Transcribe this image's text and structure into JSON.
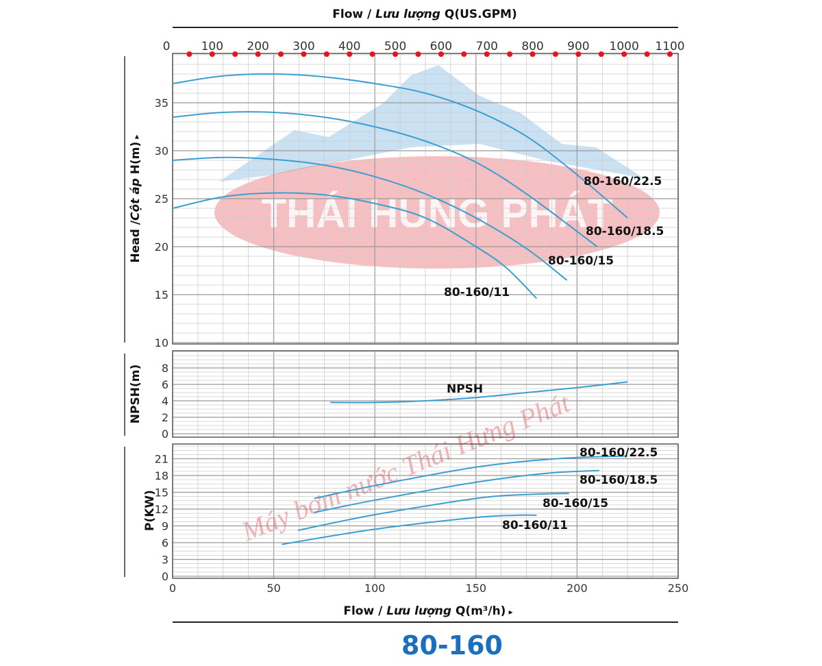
{
  "chart_data": {
    "type": "line",
    "title": "80-160",
    "top_axis": {
      "label_prefix": "Flow / ",
      "label_italic": "Lưu lượng",
      "label_suffix": " Q(US.GPM)",
      "ticks": [
        0,
        100,
        200,
        300,
        400,
        500,
        600,
        700,
        800,
        900,
        1000,
        1100
      ],
      "range": [
        0,
        1100
      ]
    },
    "xlabel": {
      "prefix": "Flow / ",
      "italic": "Lưu lượng",
      "suffix": " Q(m³/h)",
      "arrow": "▸"
    },
    "xlim": [
      0,
      250
    ],
    "xticks": [
      0,
      50,
      100,
      150,
      200,
      250
    ],
    "watermark": {
      "logo_text": "THÁI HUNG PHÁT",
      "diagonal_text": "Máy bơm nước Thái Hưng Phát"
    },
    "panels": [
      {
        "name": "head",
        "ylabel": {
          "prefix": "Head /",
          "italic": "Cột áp",
          "suffix": " H(m)",
          "arrow": "▸"
        },
        "ylim": [
          10,
          40
        ],
        "yticks": [
          10,
          15,
          20,
          25,
          30,
          35
        ],
        "series": [
          {
            "name": "80-160/22.5",
            "x": [
              0,
              25,
              50,
              75,
              100,
              125,
              150,
              175,
              200,
              225
            ],
            "y": [
              37,
              37.8,
              38,
              37.7,
              37,
              36,
              34.2,
              31.5,
              27.5,
              23
            ]
          },
          {
            "name": "80-160/18.5",
            "x": [
              0,
              25,
              50,
              75,
              100,
              125,
              150,
              175,
              210
            ],
            "y": [
              33.5,
              34,
              34,
              33.5,
              32.5,
              31,
              28.8,
              25.5,
              20
            ]
          },
          {
            "name": "80-160/15",
            "x": [
              0,
              25,
              50,
              75,
              100,
              125,
              150,
              175,
              195
            ],
            "y": [
              29,
              29.3,
              29.1,
              28.5,
              27.3,
              25.5,
              23,
              19.8,
              16.5
            ]
          },
          {
            "name": "80-160/11",
            "x": [
              0,
              25,
              50,
              75,
              100,
              125,
              150,
              165,
              180
            ],
            "y": [
              24,
              25.2,
              25.6,
              25.4,
              24.5,
              23,
              20,
              17.8,
              14.6
            ]
          }
        ]
      },
      {
        "name": "npsh",
        "ylabel": "NPSH(m)",
        "ylim": [
          0,
          10
        ],
        "yticks": [
          0,
          2,
          4,
          6,
          8
        ],
        "series": [
          {
            "name": "NPSH",
            "x": [
              78,
              100,
              125,
              150,
              175,
              200,
              225
            ],
            "y": [
              3.8,
              3.8,
              4.0,
              4.4,
              5.0,
              5.6,
              6.3
            ]
          }
        ]
      },
      {
        "name": "power",
        "ylabel": "P(KW)",
        "ylim": [
          0,
          24
        ],
        "yticks": [
          0,
          3,
          6,
          9,
          12,
          15,
          18,
          21
        ],
        "series": [
          {
            "name": "80-160/22.5",
            "x": [
              70,
              100,
              150,
              190,
              225
            ],
            "y": [
              13.9,
              16.2,
              19.5,
              21,
              21.5
            ]
          },
          {
            "name": "80-160/18.5",
            "x": [
              70,
              100,
              150,
              185,
              211
            ],
            "y": [
              11.4,
              13.6,
              16.8,
              18.4,
              18.9
            ]
          },
          {
            "name": "80-160/15",
            "x": [
              62,
              100,
              150,
              175,
              196
            ],
            "y": [
              8.2,
              11,
              13.9,
              14.6,
              14.8
            ]
          },
          {
            "name": "80-160/11",
            "x": [
              54,
              100,
              150,
              170,
              180
            ],
            "y": [
              5.7,
              8.4,
              10.5,
              10.9,
              10.9
            ]
          }
        ]
      }
    ],
    "colors": {
      "curve": "#3a9fd0",
      "title": "#1a6fc0",
      "dot": "#e8141c",
      "grid": "#bbbbbb"
    }
  }
}
